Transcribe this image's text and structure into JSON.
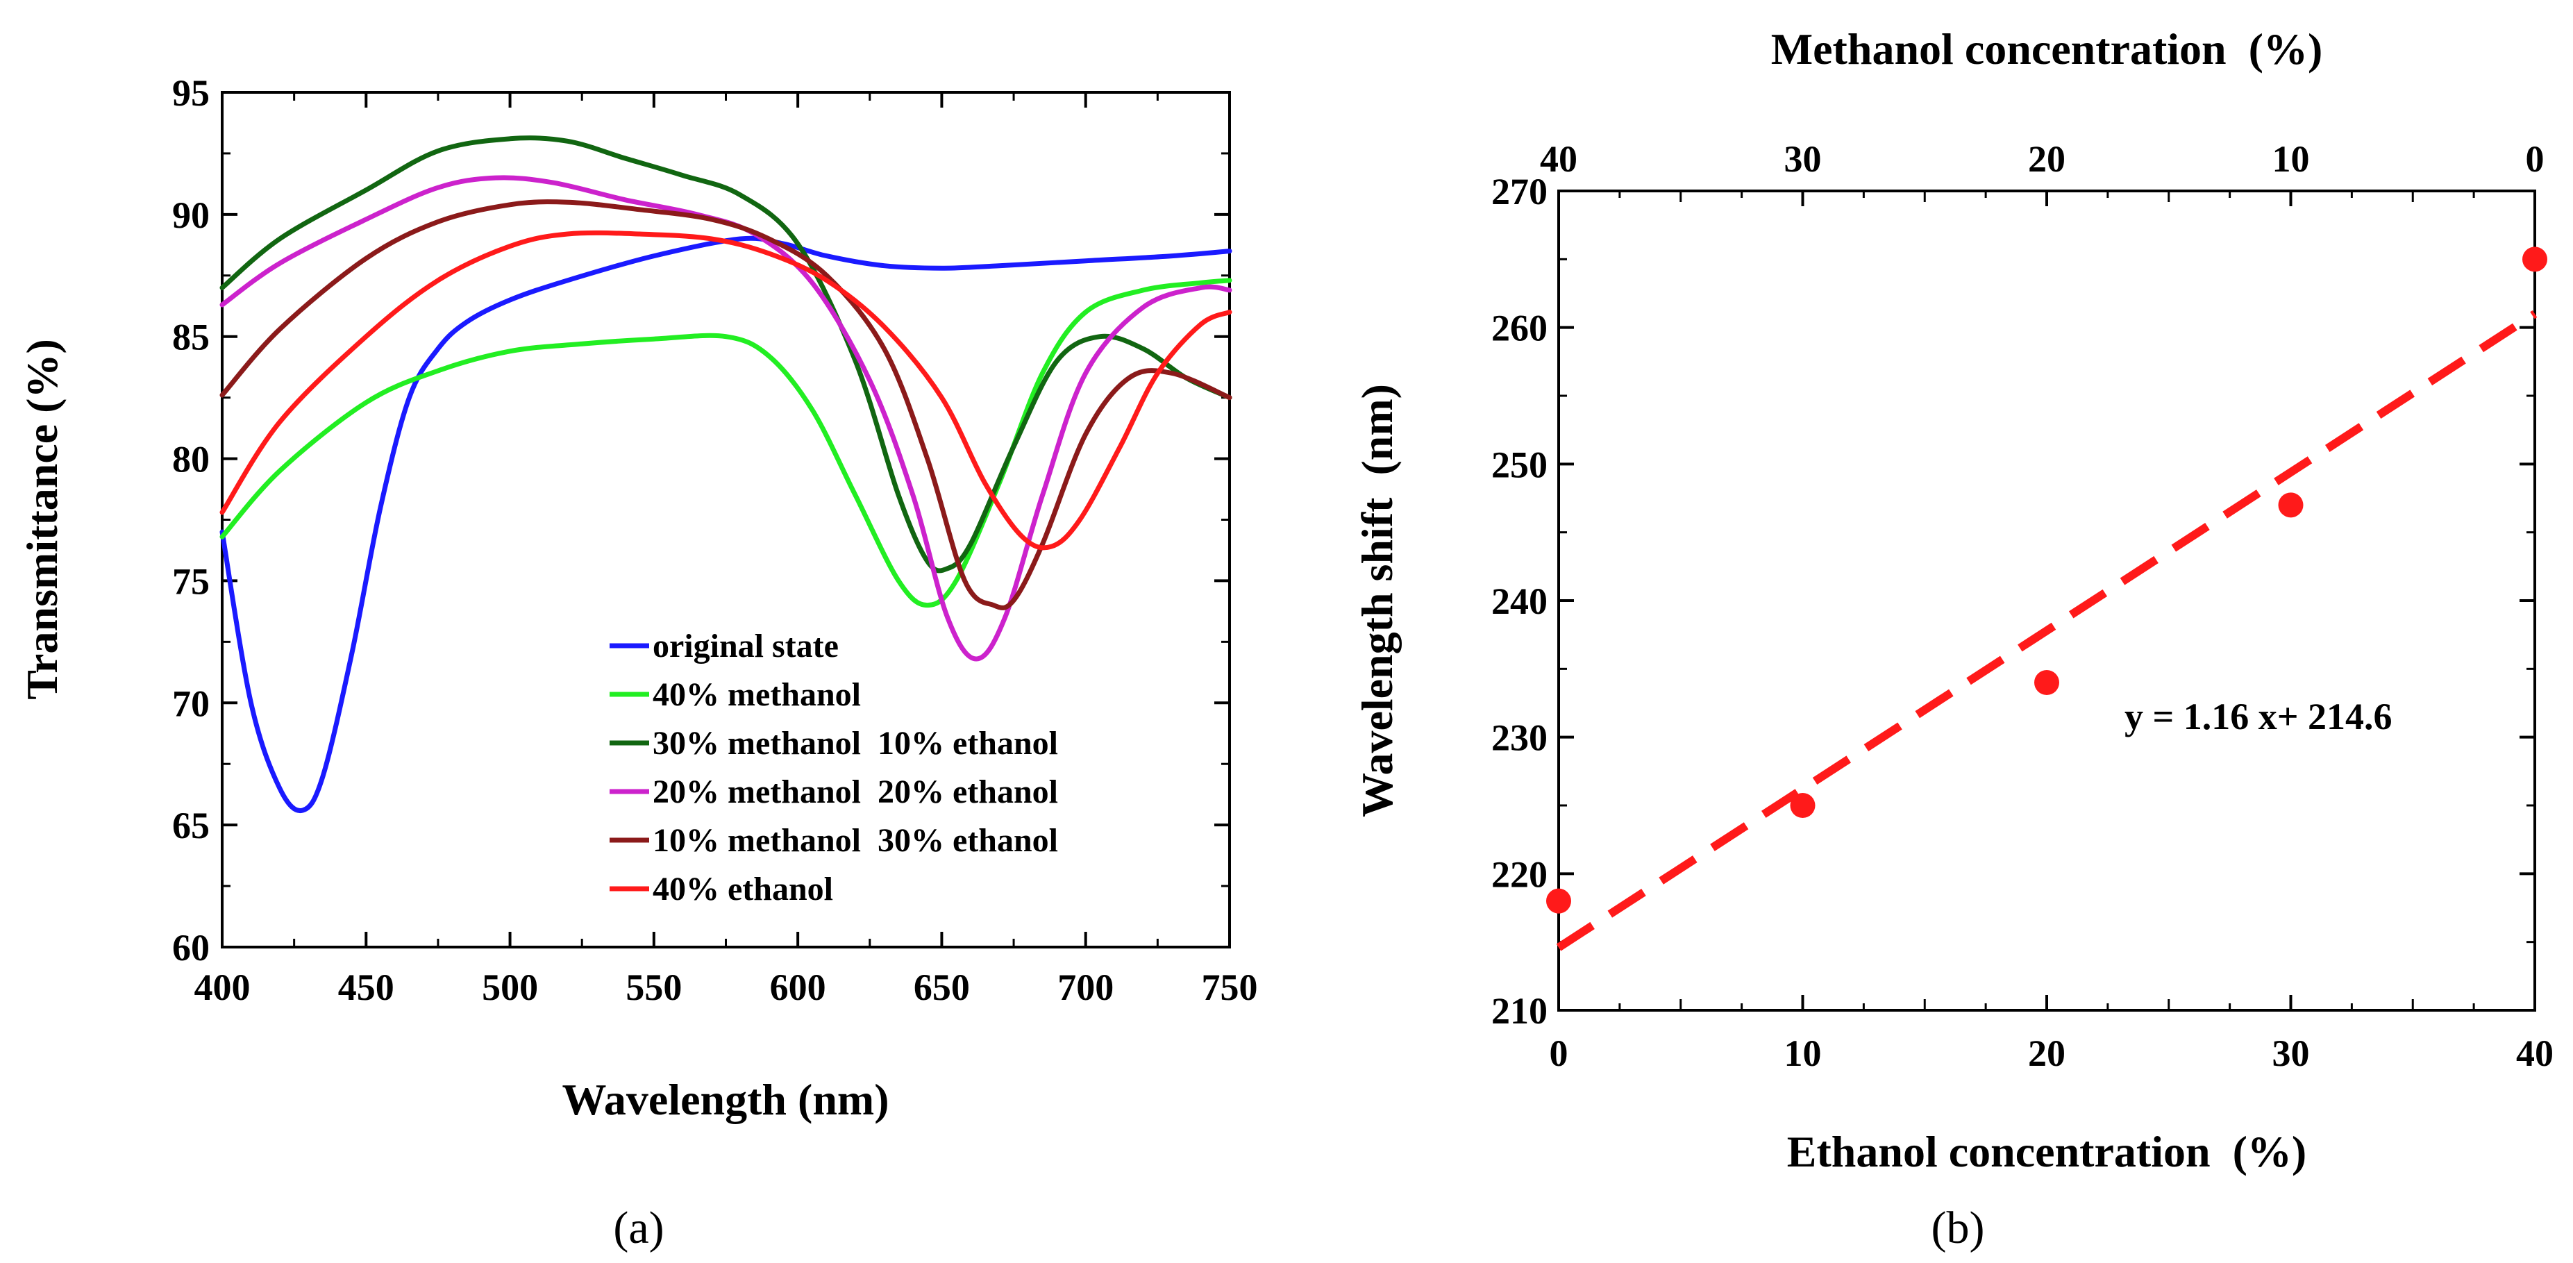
{
  "figure": {
    "panel_a_caption": "(a)",
    "panel_b_caption": "(b)"
  },
  "chart_data": [
    {
      "type": "line",
      "xlabel": "Wavelength  (nm)",
      "ylabel": "Transmittance  (%)",
      "xlim": [
        400,
        750
      ],
      "ylim": [
        60,
        95
      ],
      "xticks": [
        400,
        450,
        500,
        550,
        600,
        650,
        700,
        750
      ],
      "yticks": [
        60,
        65,
        70,
        75,
        80,
        85,
        90,
        95
      ],
      "legend_position": "lower-right",
      "series": [
        {
          "name": "original state",
          "color": "#1a1aff",
          "x": [
            400,
            410,
            420,
            428,
            435,
            445,
            455,
            465,
            475,
            485,
            500,
            520,
            550,
            580,
            595,
            610,
            630,
            650,
            670,
            700,
            730,
            750
          ],
          "y": [
            77,
            70,
            66.5,
            65.6,
            67,
            72,
            78,
            82.5,
            84.5,
            85.6,
            86.5,
            87.3,
            88.3,
            89,
            88.8,
            88.3,
            87.9,
            87.8,
            87.9,
            88.1,
            88.3,
            88.5
          ]
        },
        {
          "name": "40% methanol",
          "color": "#22ee22",
          "x": [
            400,
            420,
            450,
            475,
            500,
            525,
            550,
            575,
            590,
            605,
            620,
            635,
            645,
            655,
            670,
            685,
            700,
            720,
            740,
            750
          ],
          "y": [
            76.8,
            79.5,
            82.3,
            83.6,
            84.4,
            84.7,
            84.9,
            85,
            84.2,
            82,
            78.5,
            75,
            74,
            75,
            79,
            83.5,
            86,
            86.9,
            87.2,
            87.3
          ]
        },
        {
          "name": "30% methanol  10% ethanol",
          "color": "#116611",
          "x": [
            400,
            420,
            450,
            475,
            500,
            520,
            540,
            560,
            580,
            600,
            620,
            635,
            645,
            652,
            660,
            675,
            690,
            705,
            720,
            735,
            750
          ],
          "y": [
            87,
            89,
            91,
            92.6,
            93.1,
            93,
            92.3,
            91.6,
            90.8,
            88.8,
            84,
            78.5,
            75.8,
            75.5,
            76.5,
            80.5,
            84,
            85,
            84.5,
            83.3,
            82.5
          ]
        },
        {
          "name": "20% methanol  20% ethanol",
          "color": "#cc22cc",
          "x": [
            400,
            420,
            450,
            475,
            495,
            515,
            540,
            565,
            585,
            605,
            625,
            640,
            652,
            662,
            672,
            685,
            700,
            720,
            740,
            750
          ],
          "y": [
            86.3,
            88,
            89.8,
            91.1,
            91.5,
            91.3,
            90.6,
            90,
            89.2,
            87.2,
            83.2,
            78.5,
            73.5,
            71.8,
            73.5,
            78.5,
            83.5,
            86.2,
            87,
            86.9
          ]
        },
        {
          "name": "10% methanol  30% ethanol",
          "color": "#8b1a1a",
          "x": [
            400,
            420,
            450,
            475,
            500,
            520,
            545,
            570,
            590,
            610,
            630,
            645,
            658,
            668,
            675,
            685,
            700,
            715,
            730,
            750
          ],
          "y": [
            82.6,
            85.3,
            88.2,
            89.7,
            90.4,
            90.5,
            90.2,
            89.8,
            89,
            87.5,
            84.5,
            80,
            75,
            74,
            74.2,
            76.5,
            81,
            83.3,
            83.5,
            82.5
          ]
        },
        {
          "name": "40% ethanol",
          "color": "#ff1a1a",
          "x": [
            400,
            420,
            450,
            475,
            500,
            520,
            545,
            570,
            590,
            610,
            630,
            650,
            665,
            678,
            688,
            698,
            712,
            725,
            740,
            750
          ],
          "y": [
            77.8,
            81.5,
            85,
            87.3,
            88.7,
            89.2,
            89.2,
            89,
            88.4,
            87.3,
            85.4,
            82.5,
            79,
            76.8,
            76.4,
            77.5,
            80.5,
            83.5,
            85.5,
            86
          ]
        }
      ]
    },
    {
      "type": "scatter",
      "xlabel": "Ethanol concentration  (%)",
      "ylabel": "Wavelength shift  (nm)",
      "x2label": "Methanol concentration  (%)",
      "xlim": [
        0,
        40
      ],
      "ylim": [
        210,
        270
      ],
      "xticks": [
        0,
        10,
        20,
        30,
        40
      ],
      "x2ticks": [
        40,
        30,
        20,
        10,
        0
      ],
      "yticks": [
        210,
        220,
        230,
        240,
        250,
        260,
        270
      ],
      "color": "#ff1a1a",
      "series": [
        {
          "name": "Wavelength shift",
          "x": [
            0,
            10,
            20,
            30,
            40
          ],
          "y": [
            218,
            225,
            234,
            247,
            265
          ]
        }
      ],
      "fit": {
        "slope": 1.16,
        "intercept": 214.6,
        "style": "dashed"
      },
      "annotation": "y = 1.16 x+ 214.6"
    }
  ]
}
